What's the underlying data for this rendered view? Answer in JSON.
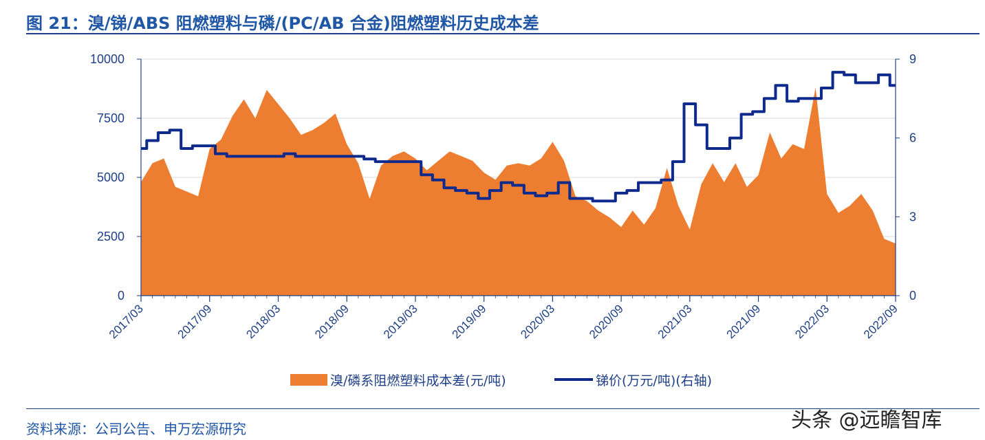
{
  "figure": {
    "title": "图 21：溴/锑/ABS 阻燃塑料与磷/(PC/AB 合金)阻燃塑料历史成本差",
    "source": "资料来源：公司公告、申万宏源研究",
    "watermark": "头条 @远瞻智库"
  },
  "colors": {
    "area": "#ed7d31",
    "line": "#0d2a8c",
    "axis": "#1f3f86",
    "grid": "#d9d9d9",
    "title": "#1f56a6"
  },
  "chart_data": {
    "type": "area",
    "x_ticks": [
      "2017/03",
      "2017/09",
      "2018/03",
      "2018/09",
      "2019/03",
      "2019/09",
      "2020/03",
      "2020/09",
      "2021/03",
      "2021/09",
      "2022/03",
      "2022/09"
    ],
    "x_range_months": [
      "2017/03",
      "2022/09"
    ],
    "y_left": {
      "ticks": [
        "0",
        "2500",
        "5000",
        "7500",
        "10000"
      ],
      "ylim": [
        0,
        10000
      ]
    },
    "y_right": {
      "ticks": [
        "0",
        "3",
        "6",
        "9"
      ],
      "ylim": [
        0,
        9
      ]
    },
    "legend_position": "bottom",
    "series": [
      {
        "name": "溴/磷系阻燃塑料成本差(元/吨)",
        "type": "area",
        "axis": "left",
        "points": [
          [
            "2017/03",
            4800
          ],
          [
            "2017/04",
            5600
          ],
          [
            "2017/05",
            5800
          ],
          [
            "2017/06",
            4600
          ],
          [
            "2017/07",
            4400
          ],
          [
            "2017/08",
            4200
          ],
          [
            "2017/09",
            6200
          ],
          [
            "2017/10",
            6600
          ],
          [
            "2017/11",
            7600
          ],
          [
            "2017/12",
            8300
          ],
          [
            "2018/01",
            7500
          ],
          [
            "2018/02",
            8700
          ],
          [
            "2018/03",
            8100
          ],
          [
            "2018/04",
            7500
          ],
          [
            "2018/05",
            6800
          ],
          [
            "2018/06",
            7000
          ],
          [
            "2018/07",
            7300
          ],
          [
            "2018/08",
            7700
          ],
          [
            "2018/09",
            6400
          ],
          [
            "2018/10",
            5600
          ],
          [
            "2018/11",
            4100
          ],
          [
            "2018/12",
            5500
          ],
          [
            "2019/01",
            5900
          ],
          [
            "2019/02",
            6100
          ],
          [
            "2019/03",
            5800
          ],
          [
            "2019/04",
            5300
          ],
          [
            "2019/05",
            5700
          ],
          [
            "2019/06",
            6100
          ],
          [
            "2019/07",
            5900
          ],
          [
            "2019/08",
            5700
          ],
          [
            "2019/09",
            5200
          ],
          [
            "2019/10",
            4900
          ],
          [
            "2019/11",
            5500
          ],
          [
            "2019/12",
            5600
          ],
          [
            "2020/01",
            5500
          ],
          [
            "2020/02",
            5800
          ],
          [
            "2020/03",
            6500
          ],
          [
            "2020/04",
            5700
          ],
          [
            "2020/05",
            4200
          ],
          [
            "2020/06",
            4000
          ],
          [
            "2020/07",
            3600
          ],
          [
            "2020/08",
            3300
          ],
          [
            "2020/09",
            2900
          ],
          [
            "2020/10",
            3600
          ],
          [
            "2020/11",
            3000
          ],
          [
            "2020/12",
            3700
          ],
          [
            "2021/01",
            5400
          ],
          [
            "2021/02",
            3800
          ],
          [
            "2021/03",
            2800
          ],
          [
            "2021/04",
            4700
          ],
          [
            "2021/05",
            5600
          ],
          [
            "2021/06",
            4800
          ],
          [
            "2021/07",
            5600
          ],
          [
            "2021/08",
            4600
          ],
          [
            "2021/09",
            5100
          ],
          [
            "2021/10",
            6900
          ],
          [
            "2021/11",
            5800
          ],
          [
            "2021/12",
            6400
          ],
          [
            "2022/01",
            6200
          ],
          [
            "2022/02",
            8800
          ],
          [
            "2022/03",
            4300
          ],
          [
            "2022/04",
            3500
          ],
          [
            "2022/05",
            3800
          ],
          [
            "2022/06",
            4300
          ],
          [
            "2022/07",
            3600
          ],
          [
            "2022/08",
            2400
          ],
          [
            "2022/09",
            2200
          ]
        ]
      },
      {
        "name": "锑价(万元/吨)(右轴)",
        "type": "line",
        "axis": "right",
        "points": [
          [
            "2017/03",
            5.6
          ],
          [
            "2017/04",
            5.9
          ],
          [
            "2017/05",
            6.2
          ],
          [
            "2017/06",
            6.3
          ],
          [
            "2017/07",
            5.6
          ],
          [
            "2017/08",
            5.7
          ],
          [
            "2017/09",
            5.7
          ],
          [
            "2017/10",
            5.4
          ],
          [
            "2017/11",
            5.3
          ],
          [
            "2017/12",
            5.3
          ],
          [
            "2018/01",
            5.3
          ],
          [
            "2018/02",
            5.3
          ],
          [
            "2018/03",
            5.3
          ],
          [
            "2018/04",
            5.4
          ],
          [
            "2018/05",
            5.3
          ],
          [
            "2018/06",
            5.3
          ],
          [
            "2018/07",
            5.3
          ],
          [
            "2018/08",
            5.3
          ],
          [
            "2018/09",
            5.3
          ],
          [
            "2018/10",
            5.3
          ],
          [
            "2018/11",
            5.2
          ],
          [
            "2018/12",
            5.1
          ],
          [
            "2019/01",
            5.1
          ],
          [
            "2019/02",
            5.1
          ],
          [
            "2019/03",
            5.1
          ],
          [
            "2019/04",
            4.6
          ],
          [
            "2019/05",
            4.4
          ],
          [
            "2019/06",
            4.1
          ],
          [
            "2019/07",
            4.0
          ],
          [
            "2019/08",
            3.9
          ],
          [
            "2019/09",
            3.7
          ],
          [
            "2019/10",
            4.0
          ],
          [
            "2019/11",
            4.3
          ],
          [
            "2019/12",
            4.2
          ],
          [
            "2020/01",
            3.9
          ],
          [
            "2020/02",
            3.8
          ],
          [
            "2020/03",
            3.9
          ],
          [
            "2020/04",
            4.3
          ],
          [
            "2020/05",
            3.7
          ],
          [
            "2020/06",
            3.7
          ],
          [
            "2020/07",
            3.6
          ],
          [
            "2020/08",
            3.6
          ],
          [
            "2020/09",
            3.9
          ],
          [
            "2020/10",
            4.0
          ],
          [
            "2020/11",
            4.3
          ],
          [
            "2020/12",
            4.3
          ],
          [
            "2021/01",
            4.4
          ],
          [
            "2021/02",
            5.1
          ],
          [
            "2021/03",
            7.3
          ],
          [
            "2021/04",
            6.5
          ],
          [
            "2021/05",
            5.6
          ],
          [
            "2021/06",
            5.6
          ],
          [
            "2021/07",
            6.0
          ],
          [
            "2021/08",
            6.9
          ],
          [
            "2021/09",
            7.0
          ],
          [
            "2021/10",
            7.5
          ],
          [
            "2021/11",
            8.0
          ],
          [
            "2021/12",
            7.4
          ],
          [
            "2022/01",
            7.5
          ],
          [
            "2022/02",
            7.5
          ],
          [
            "2022/03",
            7.9
          ],
          [
            "2022/04",
            8.5
          ],
          [
            "2022/05",
            8.4
          ],
          [
            "2022/06",
            8.1
          ],
          [
            "2022/07",
            8.1
          ],
          [
            "2022/08",
            8.4
          ],
          [
            "2022/09",
            8.0
          ]
        ]
      }
    ]
  }
}
